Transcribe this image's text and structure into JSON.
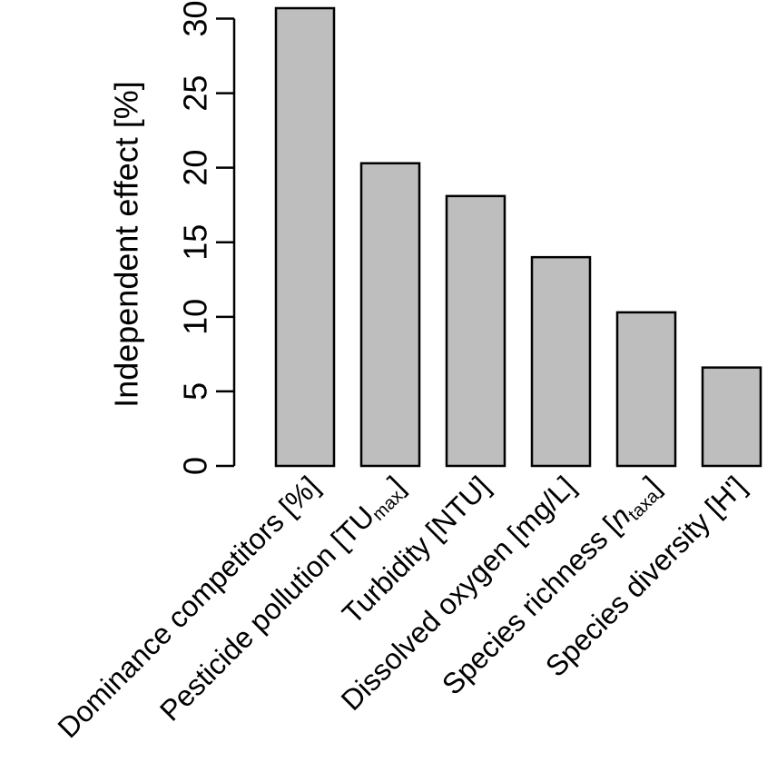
{
  "chart_data": {
    "type": "bar",
    "categories": [
      "Dominance competitors [%]",
      "Pesticide pollution [TU max]",
      "Turbidity [NTU]",
      "Dissolved oxygen [mg/L]",
      "Species richness [n taxa]",
      "Species diversity [H']"
    ],
    "category_labels": [
      {
        "main": "Dominance competitors [%]",
        "sub": "",
        "italic": "",
        "tail": ""
      },
      {
        "main": "Pesticide pollution [TU",
        "sub": "max",
        "italic": "",
        "tail": "]"
      },
      {
        "main": "Turbidity [NTU]",
        "sub": "",
        "italic": "",
        "tail": ""
      },
      {
        "main": "Dissolved oxygen [mg/L]",
        "sub": "",
        "italic": "",
        "tail": ""
      },
      {
        "main": "Species richness [",
        "italic": "n",
        "sub": "taxa",
        "tail": "]"
      },
      {
        "main": "Species diversity [H']",
        "sub": "",
        "italic": "",
        "tail": ""
      }
    ],
    "values": [
      30.7,
      20.3,
      18.1,
      14.0,
      10.3,
      6.6
    ],
    "ylabel": "Independent effect [%]",
    "xlabel": "",
    "yticks": [
      0,
      5,
      10,
      15,
      20,
      25,
      30
    ],
    "ylim": [
      0,
      30.7
    ],
    "bar_color": "#bebebe",
    "grid": false
  }
}
